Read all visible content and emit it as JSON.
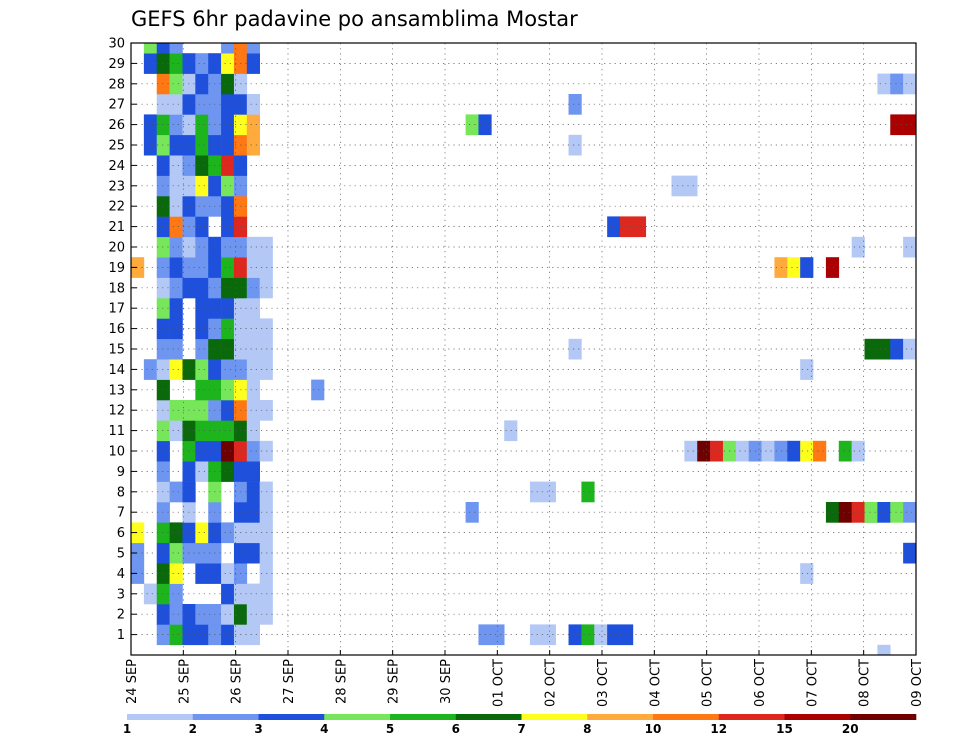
{
  "chart_data": {
    "type": "heatmap",
    "title": "GEFS 6hr padavine po ansamblima Mostar",
    "y_tick_labels": [
      "1",
      "2",
      "3",
      "4",
      "5",
      "6",
      "7",
      "8",
      "9",
      "10",
      "11",
      "12",
      "13",
      "14",
      "15",
      "16",
      "17",
      "18",
      "19",
      "20",
      "21",
      "22",
      "23",
      "24",
      "25",
      "26",
      "27",
      "28",
      "29",
      "30"
    ],
    "x_tick_labels": [
      "24 SEP",
      "25 SEP",
      "26 SEP",
      "27 SEP",
      "28 SEP",
      "29 SEP",
      "30 SEP",
      "01 OCT",
      "02 OCT",
      "03 OCT",
      "04 OCT",
      "05 OCT",
      "06 OCT",
      "07 OCT",
      "08 OCT",
      "09 OCT"
    ],
    "colorbar": {
      "labels": [
        "1",
        "2",
        "3",
        "4",
        "5",
        "6",
        "7",
        "8",
        "10",
        "12",
        "15",
        "20"
      ],
      "colors": [
        "#b4c8f5",
        "#6e96f0",
        "#1e50dc",
        "#78e65a",
        "#1eb41e",
        "#0a690a",
        "#ffff1e",
        "#ffaa3c",
        "#ff7814",
        "#dc281e",
        "#aa0000",
        "#6e0000"
      ]
    },
    "values": [
      [
        0,
        4,
        2
      ],
      [
        0,
        5,
        2
      ],
      [
        0,
        6,
        7
      ],
      [
        0,
        19,
        8
      ],
      [
        1,
        3,
        1
      ],
      [
        1,
        14,
        2
      ],
      [
        1,
        25,
        3
      ],
      [
        1,
        26,
        3
      ],
      [
        1,
        29,
        3
      ],
      [
        1,
        30,
        4
      ],
      [
        1,
        32,
        1
      ],
      [
        1,
        33,
        1
      ],
      [
        1,
        38,
        1
      ],
      [
        1,
        38,
        2
      ],
      [
        1,
        39,
        1
      ],
      [
        1,
        40,
        2
      ],
      [
        2,
        1,
        2
      ],
      [
        2,
        2,
        3
      ],
      [
        2,
        3,
        5
      ],
      [
        2,
        4,
        6
      ],
      [
        2,
        5,
        3
      ],
      [
        2,
        6,
        5
      ],
      [
        2,
        7,
        2
      ],
      [
        2,
        8,
        1
      ],
      [
        2,
        9,
        2
      ],
      [
        2,
        10,
        3
      ],
      [
        2,
        11,
        4
      ],
      [
        2,
        12,
        1
      ],
      [
        2,
        13,
        6
      ],
      [
        2,
        14,
        1
      ],
      [
        2,
        15,
        2
      ],
      [
        2,
        16,
        3
      ],
      [
        2,
        17,
        4
      ],
      [
        2,
        18,
        1
      ],
      [
        2,
        19,
        2
      ],
      [
        2,
        20,
        4
      ],
      [
        2,
        21,
        3
      ],
      [
        2,
        22,
        6
      ],
      [
        2,
        23,
        2
      ],
      [
        2,
        24,
        3
      ],
      [
        2,
        25,
        4
      ],
      [
        2,
        26,
        5
      ],
      [
        2,
        27,
        1
      ],
      [
        2,
        28,
        9
      ],
      [
        2,
        29,
        6
      ],
      [
        2,
        30,
        3
      ],
      [
        3,
        1,
        5
      ],
      [
        3,
        2,
        2
      ],
      [
        3,
        3,
        2
      ],
      [
        3,
        4,
        7
      ],
      [
        3,
        5,
        4
      ],
      [
        3,
        6,
        6
      ],
      [
        3,
        8,
        2
      ],
      [
        3,
        11,
        1
      ],
      [
        3,
        12,
        4
      ],
      [
        3,
        14,
        7
      ],
      [
        3,
        15,
        2
      ],
      [
        3,
        16,
        3
      ],
      [
        3,
        17,
        3
      ],
      [
        3,
        18,
        2
      ],
      [
        3,
        19,
        3
      ],
      [
        3,
        20,
        2
      ],
      [
        3,
        21,
        9
      ],
      [
        3,
        22,
        1
      ],
      [
        3,
        23,
        1
      ],
      [
        3,
        24,
        1
      ],
      [
        3,
        25,
        3
      ],
      [
        3,
        26,
        2
      ],
      [
        3,
        27,
        1
      ],
      [
        3,
        28,
        4
      ],
      [
        3,
        29,
        5
      ],
      [
        3,
        30,
        2
      ],
      [
        4,
        1,
        3
      ],
      [
        4,
        2,
        3
      ],
      [
        4,
        5,
        2
      ],
      [
        4,
        6,
        3
      ],
      [
        4,
        7,
        1
      ],
      [
        4,
        8,
        3
      ],
      [
        4,
        9,
        3
      ],
      [
        4,
        10,
        5
      ],
      [
        4,
        11,
        6
      ],
      [
        4,
        12,
        4
      ],
      [
        4,
        14,
        6
      ],
      [
        4,
        18,
        3
      ],
      [
        4,
        19,
        2
      ],
      [
        4,
        20,
        1
      ],
      [
        4,
        21,
        2
      ],
      [
        4,
        22,
        3
      ],
      [
        4,
        23,
        1
      ],
      [
        4,
        24,
        2
      ],
      [
        4,
        25,
        3
      ],
      [
        4,
        26,
        1
      ],
      [
        4,
        27,
        3
      ],
      [
        4,
        28,
        1
      ],
      [
        4,
        29,
        3
      ],
      [
        5,
        1,
        3
      ],
      [
        5,
        2,
        2
      ],
      [
        5,
        4,
        3
      ],
      [
        5,
        5,
        2
      ],
      [
        5,
        6,
        7
      ],
      [
        5,
        9,
        1
      ],
      [
        5,
        10,
        3
      ],
      [
        5,
        11,
        5
      ],
      [
        5,
        12,
        4
      ],
      [
        5,
        13,
        5
      ],
      [
        5,
        14,
        4
      ],
      [
        5,
        15,
        2
      ],
      [
        5,
        16,
        3
      ],
      [
        5,
        17,
        3
      ],
      [
        5,
        18,
        3
      ],
      [
        5,
        19,
        2
      ],
      [
        5,
        20,
        2
      ],
      [
        5,
        21,
        3
      ],
      [
        5,
        22,
        2
      ],
      [
        5,
        23,
        7
      ],
      [
        5,
        24,
        6
      ],
      [
        5,
        25,
        5
      ],
      [
        5,
        26,
        5
      ],
      [
        5,
        27,
        2
      ],
      [
        5,
        28,
        3
      ],
      [
        5,
        29,
        2
      ],
      [
        6,
        1,
        2
      ],
      [
        6,
        2,
        2
      ],
      [
        6,
        4,
        3
      ],
      [
        6,
        5,
        2
      ],
      [
        6,
        6,
        3
      ],
      [
        6,
        7,
        2
      ],
      [
        6,
        8,
        4
      ],
      [
        6,
        9,
        5
      ],
      [
        6,
        10,
        3
      ],
      [
        6,
        11,
        5
      ],
      [
        6,
        12,
        2
      ],
      [
        6,
        13,
        5
      ],
      [
        6,
        14,
        3
      ],
      [
        6,
        15,
        6
      ],
      [
        6,
        16,
        2
      ],
      [
        6,
        17,
        3
      ],
      [
        6,
        18,
        2
      ],
      [
        6,
        19,
        3
      ],
      [
        6,
        20,
        3
      ],
      [
        6,
        22,
        2
      ],
      [
        6,
        23,
        3
      ],
      [
        6,
        24,
        5
      ],
      [
        6,
        25,
        3
      ],
      [
        6,
        26,
        2
      ],
      [
        6,
        27,
        2
      ],
      [
        6,
        28,
        2
      ],
      [
        6,
        29,
        3
      ],
      [
        7,
        1,
        3
      ],
      [
        7,
        2,
        1
      ],
      [
        7,
        3,
        3
      ],
      [
        7,
        4,
        1
      ],
      [
        7,
        6,
        2
      ],
      [
        7,
        9,
        6
      ],
      [
        7,
        10,
        12
      ],
      [
        7,
        11,
        5
      ],
      [
        7,
        12,
        3
      ],
      [
        7,
        13,
        4
      ],
      [
        7,
        14,
        2
      ],
      [
        7,
        15,
        6
      ],
      [
        7,
        16,
        5
      ],
      [
        7,
        17,
        3
      ],
      [
        7,
        18,
        6
      ],
      [
        7,
        19,
        5
      ],
      [
        7,
        20,
        2
      ],
      [
        7,
        21,
        3
      ],
      [
        7,
        22,
        3
      ],
      [
        7,
        23,
        4
      ],
      [
        7,
        24,
        10
      ],
      [
        7,
        25,
        3
      ],
      [
        7,
        26,
        3
      ],
      [
        7,
        27,
        3
      ],
      [
        7,
        28,
        6
      ],
      [
        7,
        29,
        7
      ],
      [
        7,
        30,
        2
      ],
      [
        8,
        1,
        1
      ],
      [
        8,
        2,
        6
      ],
      [
        8,
        3,
        1
      ],
      [
        8,
        4,
        2
      ],
      [
        8,
        5,
        3
      ],
      [
        8,
        6,
        1
      ],
      [
        8,
        7,
        3
      ],
      [
        8,
        8,
        2
      ],
      [
        8,
        9,
        3
      ],
      [
        8,
        10,
        10
      ],
      [
        8,
        11,
        6
      ],
      [
        8,
        12,
        9
      ],
      [
        8,
        13,
        7
      ],
      [
        8,
        14,
        2
      ],
      [
        8,
        15,
        1
      ],
      [
        8,
        16,
        1
      ],
      [
        8,
        17,
        1
      ],
      [
        8,
        18,
        6
      ],
      [
        8,
        19,
        10
      ],
      [
        8,
        20,
        2
      ],
      [
        8,
        21,
        10
      ],
      [
        8,
        22,
        9
      ],
      [
        8,
        23,
        2
      ],
      [
        8,
        24,
        3
      ],
      [
        8,
        25,
        9
      ],
      [
        8,
        26,
        7
      ],
      [
        8,
        27,
        3
      ],
      [
        8,
        28,
        1
      ],
      [
        8,
        29,
        9
      ],
      [
        8,
        30,
        9
      ],
      [
        9,
        1,
        1
      ],
      [
        9,
        2,
        1
      ],
      [
        9,
        3,
        1
      ],
      [
        9,
        5,
        3
      ],
      [
        9,
        6,
        1
      ],
      [
        9,
        7,
        3
      ],
      [
        9,
        8,
        3
      ],
      [
        9,
        9,
        3
      ],
      [
        9,
        10,
        2
      ],
      [
        9,
        11,
        1
      ],
      [
        9,
        12,
        1
      ],
      [
        9,
        13,
        1
      ],
      [
        9,
        14,
        1
      ],
      [
        9,
        15,
        1
      ],
      [
        9,
        16,
        1
      ],
      [
        9,
        17,
        1
      ],
      [
        9,
        18,
        2
      ],
      [
        9,
        19,
        1
      ],
      [
        9,
        20,
        1
      ],
      [
        9,
        25,
        8
      ],
      [
        9,
        26,
        8
      ],
      [
        9,
        27,
        1
      ],
      [
        9,
        29,
        3
      ],
      [
        9,
        30,
        2
      ],
      [
        10,
        2,
        1
      ],
      [
        10,
        3,
        1
      ],
      [
        10,
        4,
        1
      ],
      [
        10,
        5,
        1
      ],
      [
        10,
        6,
        1
      ],
      [
        10,
        7,
        1
      ],
      [
        10,
        8,
        1
      ],
      [
        10,
        10,
        1
      ],
      [
        10,
        12,
        1
      ],
      [
        10,
        14,
        1
      ],
      [
        10,
        15,
        1
      ],
      [
        10,
        16,
        1
      ],
      [
        10,
        18,
        1
      ],
      [
        10,
        19,
        1
      ],
      [
        10,
        20,
        1
      ],
      [
        14,
        13,
        2
      ],
      [
        26,
        7,
        2
      ],
      [
        26,
        26,
        4
      ],
      [
        27,
        1,
        2
      ],
      [
        27,
        26,
        3
      ],
      [
        28,
        1,
        2
      ],
      [
        29,
        11,
        1
      ],
      [
        31,
        1,
        1
      ],
      [
        31,
        8,
        1
      ],
      [
        32,
        1,
        1
      ],
      [
        32,
        8,
        1
      ],
      [
        34,
        1,
        3
      ],
      [
        34,
        15,
        1
      ],
      [
        34,
        25,
        1
      ],
      [
        34,
        27,
        2
      ],
      [
        35,
        1,
        5
      ],
      [
        35,
        8,
        5
      ],
      [
        36,
        1,
        1
      ],
      [
        37,
        1,
        3
      ],
      [
        37,
        21,
        3
      ],
      [
        38,
        1,
        3
      ],
      [
        38,
        21,
        10
      ],
      [
        39,
        21,
        10
      ],
      [
        42,
        23,
        1
      ],
      [
        43,
        23,
        1
      ],
      [
        43,
        10,
        1
      ],
      [
        44,
        10,
        12
      ],
      [
        45,
        10,
        10
      ],
      [
        46,
        10,
        4
      ],
      [
        47,
        10,
        1
      ],
      [
        48,
        10,
        2
      ],
      [
        49,
        10,
        1
      ],
      [
        50,
        19,
        8
      ],
      [
        51,
        19,
        7
      ],
      [
        52,
        19,
        3
      ],
      [
        54,
        19,
        11
      ],
      [
        50,
        10,
        2
      ],
      [
        51,
        10,
        3
      ],
      [
        52,
        10,
        7
      ],
      [
        53,
        10,
        9
      ],
      [
        52,
        4,
        1
      ],
      [
        52,
        14,
        1
      ],
      [
        54,
        7,
        6
      ],
      [
        55,
        7,
        12
      ],
      [
        56,
        7,
        10
      ],
      [
        57,
        7,
        5
      ],
      [
        55,
        10,
        5
      ],
      [
        56,
        10,
        1
      ],
      [
        57,
        7,
        4
      ],
      [
        58,
        7,
        3
      ],
      [
        59,
        7,
        4
      ],
      [
        60,
        7,
        2
      ],
      [
        61,
        7,
        1
      ],
      [
        56,
        20,
        1
      ],
      [
        57,
        15,
        6
      ],
      [
        58,
        15,
        6
      ],
      [
        59,
        15,
        3
      ],
      [
        60,
        15,
        1
      ],
      [
        58,
        0,
        1
      ],
      [
        58,
        28,
        1
      ],
      [
        59,
        28,
        2
      ],
      [
        60,
        28,
        1
      ],
      [
        59,
        26,
        11
      ],
      [
        60,
        26,
        11
      ],
      [
        61,
        26,
        12
      ],
      [
        62,
        26,
        11
      ],
      [
        60,
        20,
        1
      ],
      [
        61,
        20,
        3
      ],
      [
        60,
        5,
        3
      ]
    ]
  }
}
